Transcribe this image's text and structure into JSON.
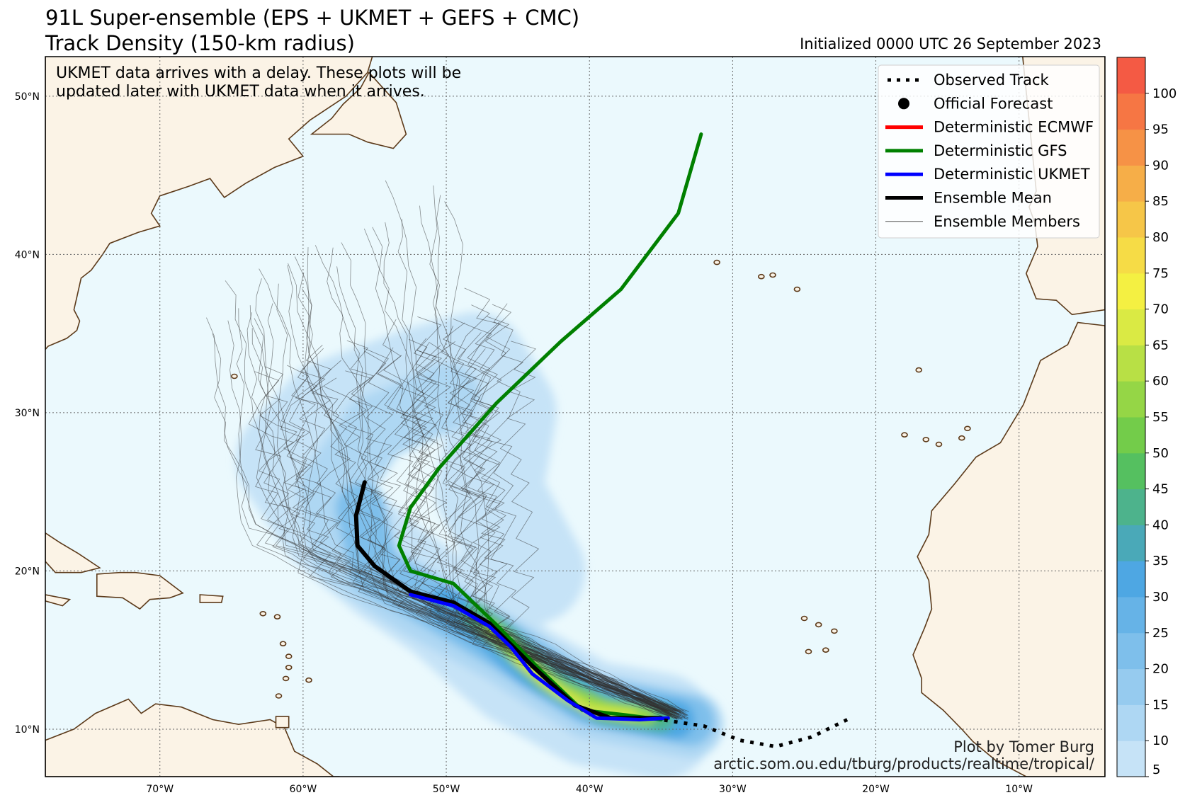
{
  "title_line1": "91L Super-ensemble (EPS + UKMET + GEFS + CMC)",
  "title_line2": "Track Density (150-km radius)",
  "initialized": "Initialized 0000 UTC 26 September 2023",
  "notice": [
    "UKMET data arrives with a delay. These plots will be",
    "updated later with UKMET data when it arrives."
  ],
  "credit_name": "Plot by Tomer Burg",
  "credit_url": "arctic.som.ou.edu/tburg/products/realtime/tropical/",
  "legend": [
    {
      "label": "Observed Track",
      "style": "dotted",
      "color": "#000000"
    },
    {
      "label": "Official Forecast",
      "style": "dot",
      "color": "#000000"
    },
    {
      "label": "Deterministic ECMWF",
      "style": "line",
      "color": "#ff0000"
    },
    {
      "label": "Deterministic GFS",
      "style": "line",
      "color": "#008000"
    },
    {
      "label": "Deterministic UKMET",
      "style": "line",
      "color": "#0000ff"
    },
    {
      "label": "Ensemble Mean",
      "style": "line",
      "color": "#000000"
    },
    {
      "label": "Ensemble Members",
      "style": "thin",
      "color": "#555555"
    }
  ],
  "lat_labels": [
    "50°N",
    "40°N",
    "30°N",
    "20°N",
    "10°N"
  ],
  "lon_labels": [
    "70°W",
    "60°W",
    "50°W",
    "40°W",
    "30°W",
    "20°W",
    "10°W"
  ],
  "map_extent": {
    "lon": [
      -78,
      -4
    ],
    "lat": [
      7,
      52.5
    ]
  },
  "colorbar": {
    "ticks": [
      "5",
      "10",
      "15",
      "20",
      "25",
      "30",
      "35",
      "40",
      "45",
      "50",
      "55",
      "60",
      "65",
      "70",
      "75",
      "80",
      "85",
      "90",
      "95",
      "100"
    ],
    "colors": [
      "#c6e3f7",
      "#aed7f3",
      "#96cbef",
      "#7ebfeb",
      "#66b3e7",
      "#4ea7e3",
      "#4aa9b8",
      "#4db38c",
      "#55c060",
      "#73cc4a",
      "#95d646",
      "#b8e045",
      "#daea44",
      "#f4f042",
      "#f6dc46",
      "#f6c648",
      "#f6ae48",
      "#f69246",
      "#f67644",
      "#f45a44"
    ]
  },
  "colors": {
    "ocean": "#ebf9fd",
    "land": "#fbf3e6",
    "coast": "#5c3a1a",
    "gfs": "#008000",
    "mean": "#000000",
    "ukmet": "#0000ff"
  },
  "tracks": {
    "observed": [
      [
        -22.0,
        10.6
      ],
      [
        -24.5,
        9.5
      ],
      [
        -27.0,
        8.9
      ],
      [
        -29.5,
        9.3
      ],
      [
        -32.0,
        10.2
      ],
      [
        -35.0,
        10.6
      ]
    ],
    "gfs": [
      [
        -32.2,
        47.6
      ],
      [
        -33.8,
        42.6
      ],
      [
        -37.8,
        37.8
      ],
      [
        -42.0,
        34.5
      ],
      [
        -46.5,
        30.6
      ],
      [
        -50.5,
        26.5
      ],
      [
        -52.5,
        24.0
      ],
      [
        -53.3,
        21.6
      ],
      [
        -52.5,
        20.0
      ],
      [
        -49.5,
        19.2
      ],
      [
        -46.5,
        16.6
      ],
      [
        -43.5,
        13.8
      ],
      [
        -40.5,
        11.2
      ],
      [
        -37.5,
        10.9
      ],
      [
        -35.0,
        10.6
      ]
    ],
    "mean": [
      [
        -55.7,
        25.6
      ],
      [
        -56.3,
        23.5
      ],
      [
        -56.2,
        21.6
      ],
      [
        -55.0,
        20.3
      ],
      [
        -52.5,
        18.7
      ],
      [
        -49.5,
        18.0
      ],
      [
        -47.0,
        16.7
      ],
      [
        -44.0,
        14.0
      ],
      [
        -41.0,
        11.5
      ],
      [
        -38.5,
        10.7
      ],
      [
        -35.0,
        10.7
      ]
    ],
    "ukmet": [
      [
        -52.5,
        18.5
      ],
      [
        -49.5,
        17.8
      ],
      [
        -47.0,
        16.5
      ],
      [
        -45.5,
        15.2
      ],
      [
        -44.0,
        13.5
      ],
      [
        -41.5,
        11.8
      ],
      [
        -39.5,
        10.7
      ],
      [
        -36.5,
        10.6
      ],
      [
        -34.5,
        10.7
      ]
    ]
  }
}
